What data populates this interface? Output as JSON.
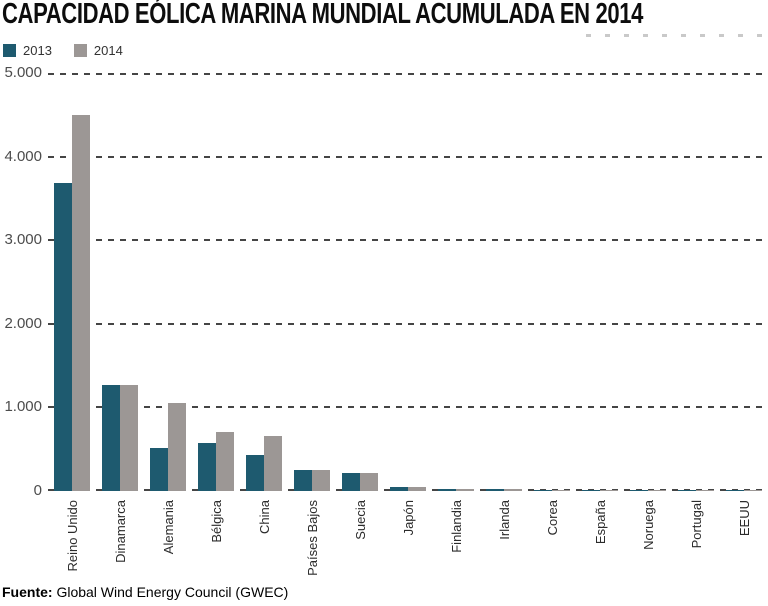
{
  "source": {
    "label": "Fuente:",
    "text": "Global Wind Energy Council (GWEC)"
  },
  "chart_data": {
    "type": "bar",
    "title": "CAPACIDAD EÓLICA MARINA MUNDIAL ACUMULADA EN 2014",
    "subtitle": "",
    "categories": [
      "Reino Unido",
      "Dinamarca",
      "Alemania",
      "Bélgica",
      "China",
      "Países Bajos",
      "Suecia",
      "Japón",
      "Finlandia",
      "Irlanda",
      "Corea",
      "España",
      "Noruega",
      "Portugal",
      "EEUU"
    ],
    "series": [
      {
        "name": "2013",
        "color": "#1e5a6f",
        "values": [
          3680,
          1270,
          520,
          570,
          430,
          250,
          210,
          50,
          26,
          25,
          5,
          5,
          2,
          2,
          1
        ]
      },
      {
        "name": "2014",
        "color": "#9c9795",
        "values": [
          4500,
          1270,
          1050,
          710,
          660,
          250,
          210,
          50,
          26,
          25,
          5,
          5,
          2,
          2,
          1
        ]
      }
    ],
    "xlabel": "",
    "ylabel": "",
    "ylim": [
      0,
      5000
    ],
    "yticks": [
      {
        "value": 5000,
        "label": "5.000"
      },
      {
        "value": 4000,
        "label": "4.000"
      },
      {
        "value": 3000,
        "label": "3.000"
      },
      {
        "value": 2000,
        "label": "2.000"
      },
      {
        "value": 1000,
        "label": "1.000"
      },
      {
        "value": 0,
        "label": "0"
      }
    ],
    "grid": "horizontal-dashed",
    "legend_position": "top-left",
    "colors": {
      "grid": "#454545",
      "axis_text": "#4c4c4c",
      "category_text": "#2b2b2b",
      "title_text": "#0d0d0d"
    }
  }
}
